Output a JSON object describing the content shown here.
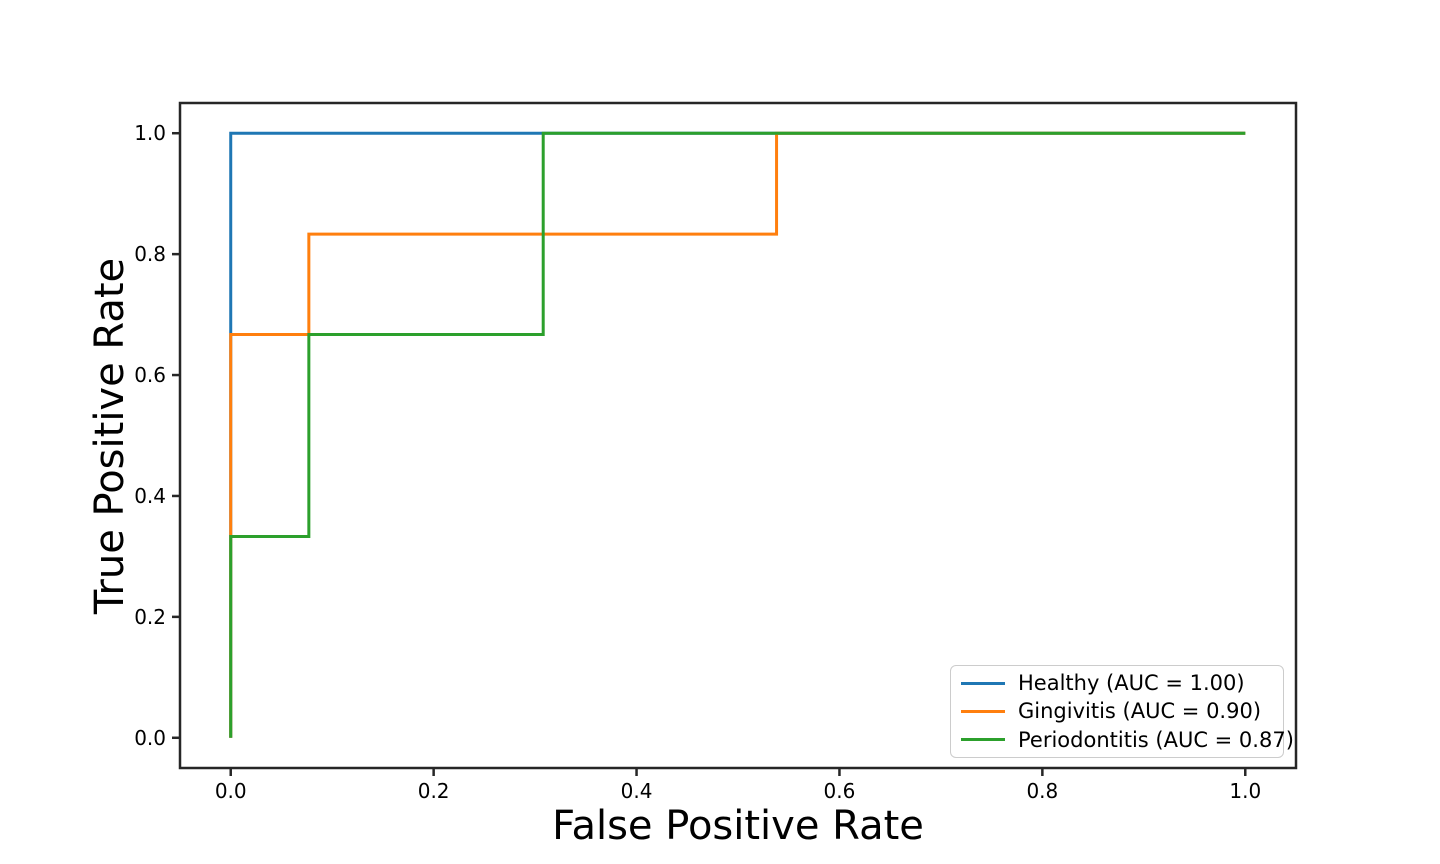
{
  "chart_data": {
    "type": "line",
    "subtype": "roc-step-curves",
    "title": "",
    "xlabel": "False Positive Rate",
    "ylabel": "True Positive Rate",
    "xlim": [
      -0.05,
      1.05
    ],
    "ylim": [
      -0.05,
      1.05
    ],
    "x_ticks": [
      0.0,
      0.2,
      0.4,
      0.6,
      0.8,
      1.0
    ],
    "y_ticks": [
      0.0,
      0.2,
      0.4,
      0.6,
      0.8,
      1.0
    ],
    "grid": false,
    "legend_position": "lower right",
    "series": [
      {
        "name": "Healthy (AUC = 1.00)",
        "class": "Healthy",
        "auc": 1.0,
        "color": "#1f77b4",
        "x": [
          0.0,
          0.0,
          1.0
        ],
        "y": [
          0.0,
          1.0,
          1.0
        ]
      },
      {
        "name": "Gingivitis (AUC = 0.90)",
        "class": "Gingivitis",
        "auc": 0.9,
        "color": "#ff7f0e",
        "x": [
          0.0,
          0.0,
          0.077,
          0.077,
          0.538,
          0.538,
          1.0
        ],
        "y": [
          0.0,
          0.667,
          0.667,
          0.833,
          0.833,
          1.0,
          1.0
        ]
      },
      {
        "name": "Periodontitis (AUC = 0.87)",
        "class": "Periodontitis",
        "auc": 0.87,
        "color": "#2ca02c",
        "x": [
          0.0,
          0.0,
          0.077,
          0.077,
          0.308,
          0.308,
          1.0
        ],
        "y": [
          0.0,
          0.333,
          0.333,
          0.667,
          0.667,
          1.0,
          1.0
        ]
      }
    ],
    "style": {
      "line_width": 3,
      "spine_color": "#262626",
      "spine_width": 2.5,
      "tick_length": 8,
      "tick_label_size": 20,
      "text_color": "#000000",
      "background": "#ffffff"
    }
  }
}
